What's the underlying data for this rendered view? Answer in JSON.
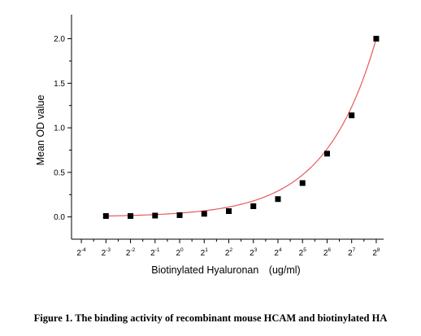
{
  "chart_data": {
    "type": "scatter",
    "title": "",
    "xlabel": "Biotinylated Hyaluronan　(ug/ml)",
    "ylabel": "Mean OD value",
    "x_scale": "log2",
    "x_tick_labels": [
      {
        "base": "2",
        "exp": "-4"
      },
      {
        "base": "2",
        "exp": "-3"
      },
      {
        "base": "2",
        "exp": "-2"
      },
      {
        "base": "2",
        "exp": "-1"
      },
      {
        "base": "2",
        "exp": "0"
      },
      {
        "base": "2",
        "exp": "1"
      },
      {
        "base": "2",
        "exp": "2"
      },
      {
        "base": "2",
        "exp": "3"
      },
      {
        "base": "2",
        "exp": "4"
      },
      {
        "base": "2",
        "exp": "5"
      },
      {
        "base": "2",
        "exp": "6"
      },
      {
        "base": "2",
        "exp": "7"
      },
      {
        "base": "2",
        "exp": "8"
      }
    ],
    "y_ticks": [
      "0.0",
      "0.5",
      "1.0",
      "1.5",
      "2.0"
    ],
    "xlim_exp": [
      -4.4,
      8.3
    ],
    "ylim": [
      -0.25,
      2.27
    ],
    "grid": false,
    "legend": "none",
    "points": {
      "x_exp": [
        -3,
        -2,
        -1,
        0,
        1,
        2,
        3,
        4,
        5,
        6,
        7,
        8
      ],
      "y": [
        0.01,
        0.01,
        0.015,
        0.02,
        0.035,
        0.065,
        0.12,
        0.2,
        0.38,
        0.71,
        1.14,
        2.0
      ]
    },
    "fit_curve": {
      "model": "exponential",
      "color": "#e8585a"
    },
    "marker_color": "#000000"
  },
  "caption": "Figure 1. The binding activity of recombinant mouse HCAM and biotinylated HA"
}
